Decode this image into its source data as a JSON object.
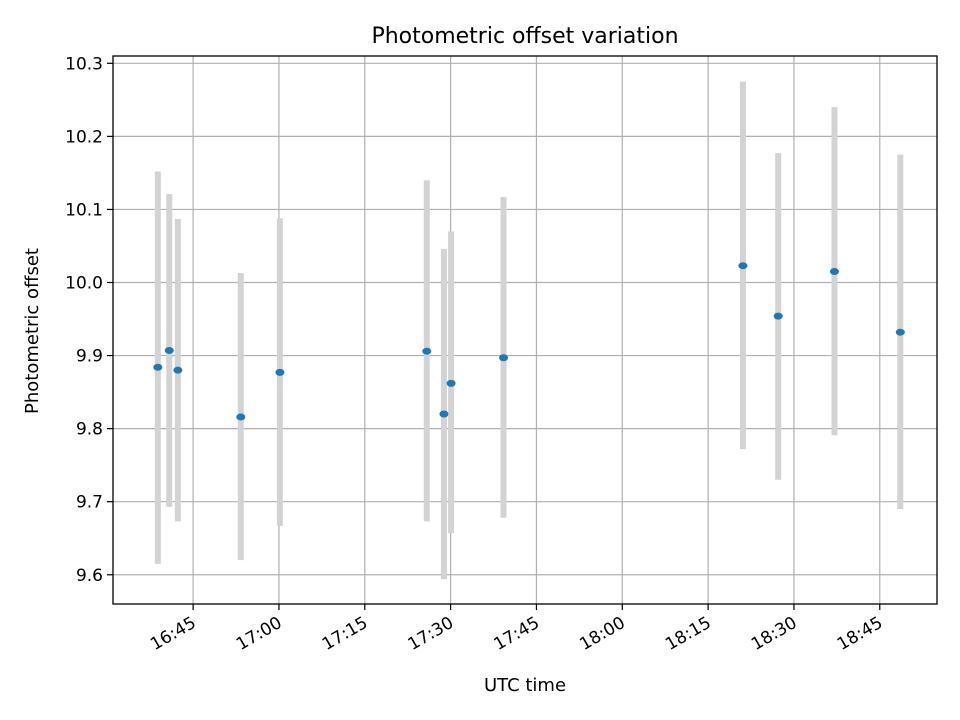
{
  "chart_data": {
    "type": "scatter",
    "title": "Photometric offset variation",
    "xlabel": "UTC time",
    "ylabel": "Photometric offset",
    "x_axis": {
      "kind": "time",
      "range": [
        "16:31",
        "18:55"
      ],
      "ticks": [
        "16:45",
        "17:00",
        "17:15",
        "17:30",
        "17:45",
        "18:00",
        "18:15",
        "18:30",
        "18:45"
      ]
    },
    "y_axis": {
      "range": [
        9.56,
        10.31
      ],
      "ticks": [
        9.6,
        9.7,
        9.8,
        9.9,
        10.0,
        10.1,
        10.2,
        10.3
      ],
      "tick_labels": [
        "9.6",
        "9.7",
        "9.8",
        "9.9",
        "10.0",
        "10.1",
        "10.2",
        "10.3"
      ]
    },
    "grid": true,
    "marker_color": "#1f77b4",
    "errorbar_color": "#d3d3d3",
    "points": [
      {
        "x": "16:38:50",
        "y": 9.884,
        "ylow": 9.615,
        "yhigh": 10.152
      },
      {
        "x": "16:40:50",
        "y": 9.907,
        "ylow": 9.693,
        "yhigh": 10.121
      },
      {
        "x": "16:42:20",
        "y": 9.88,
        "ylow": 9.673,
        "yhigh": 10.087
      },
      {
        "x": "16:53:20",
        "y": 9.816,
        "ylow": 9.62,
        "yhigh": 10.013
      },
      {
        "x": "17:00:10",
        "y": 9.877,
        "ylow": 9.667,
        "yhigh": 10.088
      },
      {
        "x": "17:25:50",
        "y": 9.906,
        "ylow": 9.673,
        "yhigh": 10.14
      },
      {
        "x": "17:28:50",
        "y": 9.82,
        "ylow": 9.594,
        "yhigh": 10.046
      },
      {
        "x": "17:30:05",
        "y": 9.862,
        "ylow": 9.657,
        "yhigh": 10.07
      },
      {
        "x": "17:39:15",
        "y": 9.897,
        "ylow": 9.678,
        "yhigh": 10.117
      },
      {
        "x": "18:21:05",
        "y": 10.023,
        "ylow": 9.772,
        "yhigh": 10.275
      },
      {
        "x": "18:27:15",
        "y": 9.954,
        "ylow": 9.73,
        "yhigh": 10.177
      },
      {
        "x": "18:37:05",
        "y": 10.015,
        "ylow": 9.791,
        "yhigh": 10.24
      },
      {
        "x": "18:48:35",
        "y": 9.932,
        "ylow": 9.69,
        "yhigh": 10.175
      }
    ]
  }
}
